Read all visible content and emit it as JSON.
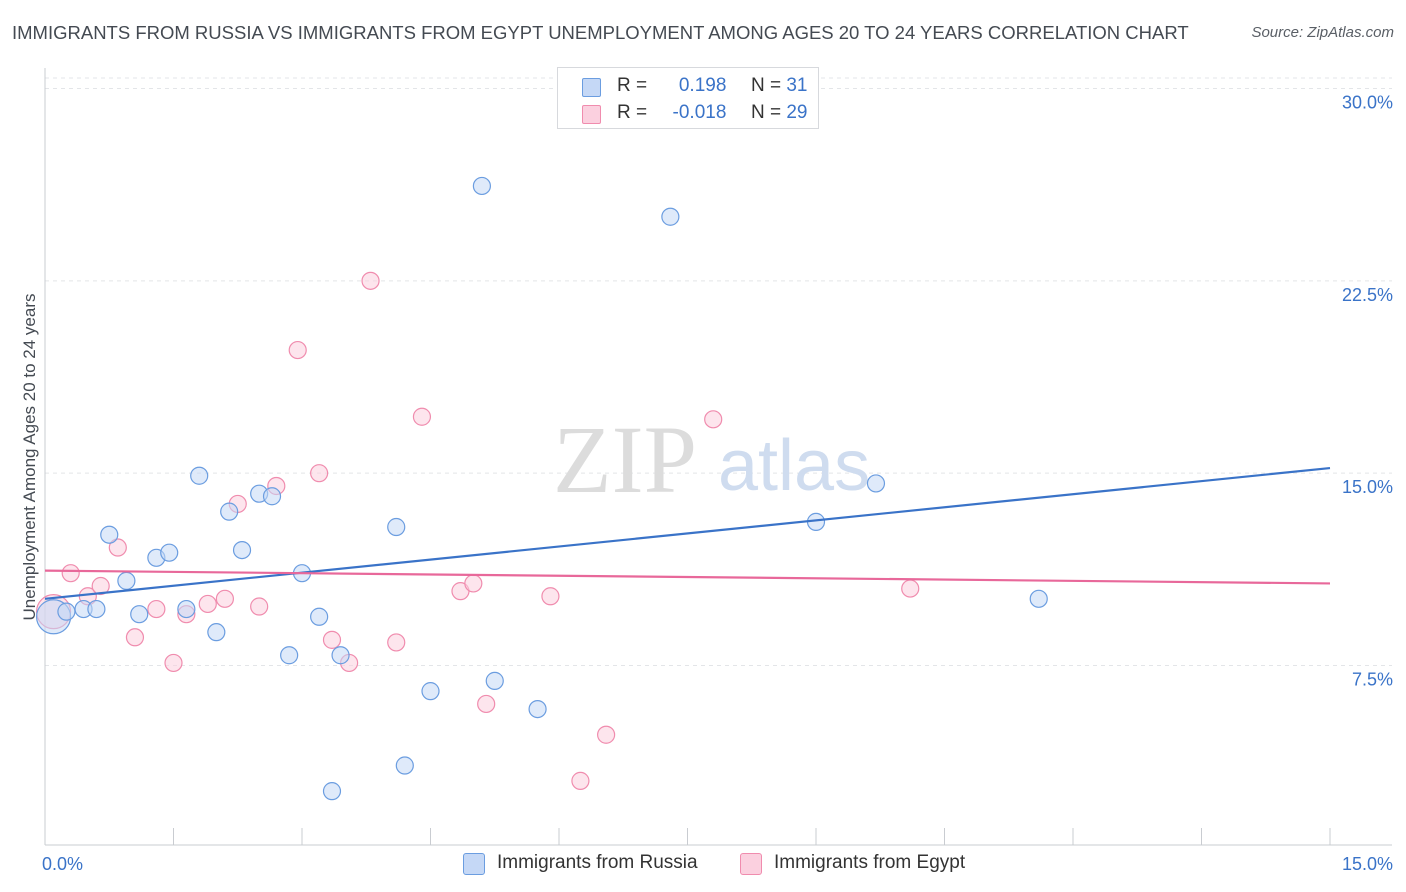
{
  "title": "IMMIGRANTS FROM RUSSIA VS IMMIGRANTS FROM EGYPT UNEMPLOYMENT AMONG AGES 20 TO 24 YEARS CORRELATION CHART",
  "source": "Source: ZipAtlas.com",
  "watermark": {
    "zip": "ZIP",
    "atlas": "atlas"
  },
  "legend": {
    "russia": {
      "r_label": "R =",
      "r_value": "0.198",
      "n_label": "N =",
      "n_value": "31"
    },
    "egypt": {
      "r_label": "R =",
      "r_value": "-0.018",
      "n_label": "N =",
      "n_value": "29"
    }
  },
  "colors": {
    "russia": "#6b9de0",
    "egypt": "#f08cae",
    "russia_line": "#3a73c8",
    "egypt_line": "#e8689a",
    "tick_label": "#3a73c8"
  },
  "chart_data": {
    "type": "scatter",
    "title": "IMMIGRANTS FROM RUSSIA VS IMMIGRANTS FROM EGYPT UNEMPLOYMENT AMONG AGES 20 TO 24 YEARS CORRELATION CHART",
    "xlabel": "",
    "ylabel": "Unemployment Among Ages 20 to 24 years",
    "xlim": [
      0,
      15
    ],
    "ylim": [
      0.5,
      30.8
    ],
    "x_tick_labels": [
      "0.0%",
      "15.0%"
    ],
    "y_ticks": [
      7.5,
      15.0,
      22.5,
      30.0
    ],
    "y_tick_labels": [
      "7.5%",
      "15.0%",
      "22.5%",
      "30.0%"
    ],
    "grid": true,
    "legend_position": "top-center",
    "series": [
      {
        "name": "Immigrants from Russia",
        "r": 0.198,
        "n": 31,
        "trend": {
          "x": [
            0,
            15
          ],
          "y": [
            10.1,
            15.2
          ]
        },
        "points": [
          {
            "x": 0.1,
            "y": 9.4,
            "big": true
          },
          {
            "x": 0.25,
            "y": 9.6
          },
          {
            "x": 0.45,
            "y": 9.7
          },
          {
            "x": 0.6,
            "y": 9.7
          },
          {
            "x": 0.75,
            "y": 12.6
          },
          {
            "x": 0.95,
            "y": 10.8
          },
          {
            "x": 1.1,
            "y": 9.5
          },
          {
            "x": 1.3,
            "y": 11.7
          },
          {
            "x": 1.45,
            "y": 11.9
          },
          {
            "x": 1.65,
            "y": 9.7
          },
          {
            "x": 1.8,
            "y": 14.9
          },
          {
            "x": 2.0,
            "y": 8.8
          },
          {
            "x": 2.15,
            "y": 13.5
          },
          {
            "x": 2.3,
            "y": 12.0
          },
          {
            "x": 2.5,
            "y": 14.2
          },
          {
            "x": 2.65,
            "y": 14.1
          },
          {
            "x": 2.85,
            "y": 7.9
          },
          {
            "x": 3.0,
            "y": 11.1
          },
          {
            "x": 3.2,
            "y": 9.4
          },
          {
            "x": 3.35,
            "y": 2.6
          },
          {
            "x": 3.45,
            "y": 7.9
          },
          {
            "x": 4.1,
            "y": 12.9
          },
          {
            "x": 4.2,
            "y": 3.6
          },
          {
            "x": 4.5,
            "y": 6.5
          },
          {
            "x": 5.1,
            "y": 26.2
          },
          {
            "x": 5.25,
            "y": 6.9
          },
          {
            "x": 5.75,
            "y": 5.8
          },
          {
            "x": 7.3,
            "y": 25.0
          },
          {
            "x": 9.0,
            "y": 13.1
          },
          {
            "x": 9.7,
            "y": 14.6
          },
          {
            "x": 11.6,
            "y": 10.1
          }
        ]
      },
      {
        "name": "Immigrants from Egypt",
        "r": -0.018,
        "n": 29,
        "trend": {
          "x": [
            0,
            15
          ],
          "y": [
            11.2,
            10.7
          ]
        },
        "points": [
          {
            "x": 0.1,
            "y": 9.6,
            "big": true
          },
          {
            "x": 0.3,
            "y": 11.1
          },
          {
            "x": 0.5,
            "y": 10.2
          },
          {
            "x": 0.65,
            "y": 10.6
          },
          {
            "x": 0.85,
            "y": 12.1
          },
          {
            "x": 1.05,
            "y": 8.6
          },
          {
            "x": 1.3,
            "y": 9.7
          },
          {
            "x": 1.5,
            "y": 7.6
          },
          {
            "x": 1.65,
            "y": 9.5
          },
          {
            "x": 1.9,
            "y": 9.9
          },
          {
            "x": 2.1,
            "y": 10.1
          },
          {
            "x": 2.25,
            "y": 13.8
          },
          {
            "x": 2.5,
            "y": 9.8
          },
          {
            "x": 2.7,
            "y": 14.5
          },
          {
            "x": 2.95,
            "y": 19.8
          },
          {
            "x": 3.2,
            "y": 15.0
          },
          {
            "x": 3.35,
            "y": 8.5
          },
          {
            "x": 3.55,
            "y": 7.6
          },
          {
            "x": 3.8,
            "y": 22.5
          },
          {
            "x": 4.1,
            "y": 8.4
          },
          {
            "x": 4.4,
            "y": 17.2
          },
          {
            "x": 4.85,
            "y": 10.4
          },
          {
            "x": 5.0,
            "y": 10.7
          },
          {
            "x": 5.15,
            "y": 6.0
          },
          {
            "x": 5.9,
            "y": 10.2
          },
          {
            "x": 6.25,
            "y": 3.0
          },
          {
            "x": 6.55,
            "y": 4.8
          },
          {
            "x": 7.8,
            "y": 17.1
          },
          {
            "x": 10.1,
            "y": 10.5
          }
        ]
      }
    ]
  }
}
